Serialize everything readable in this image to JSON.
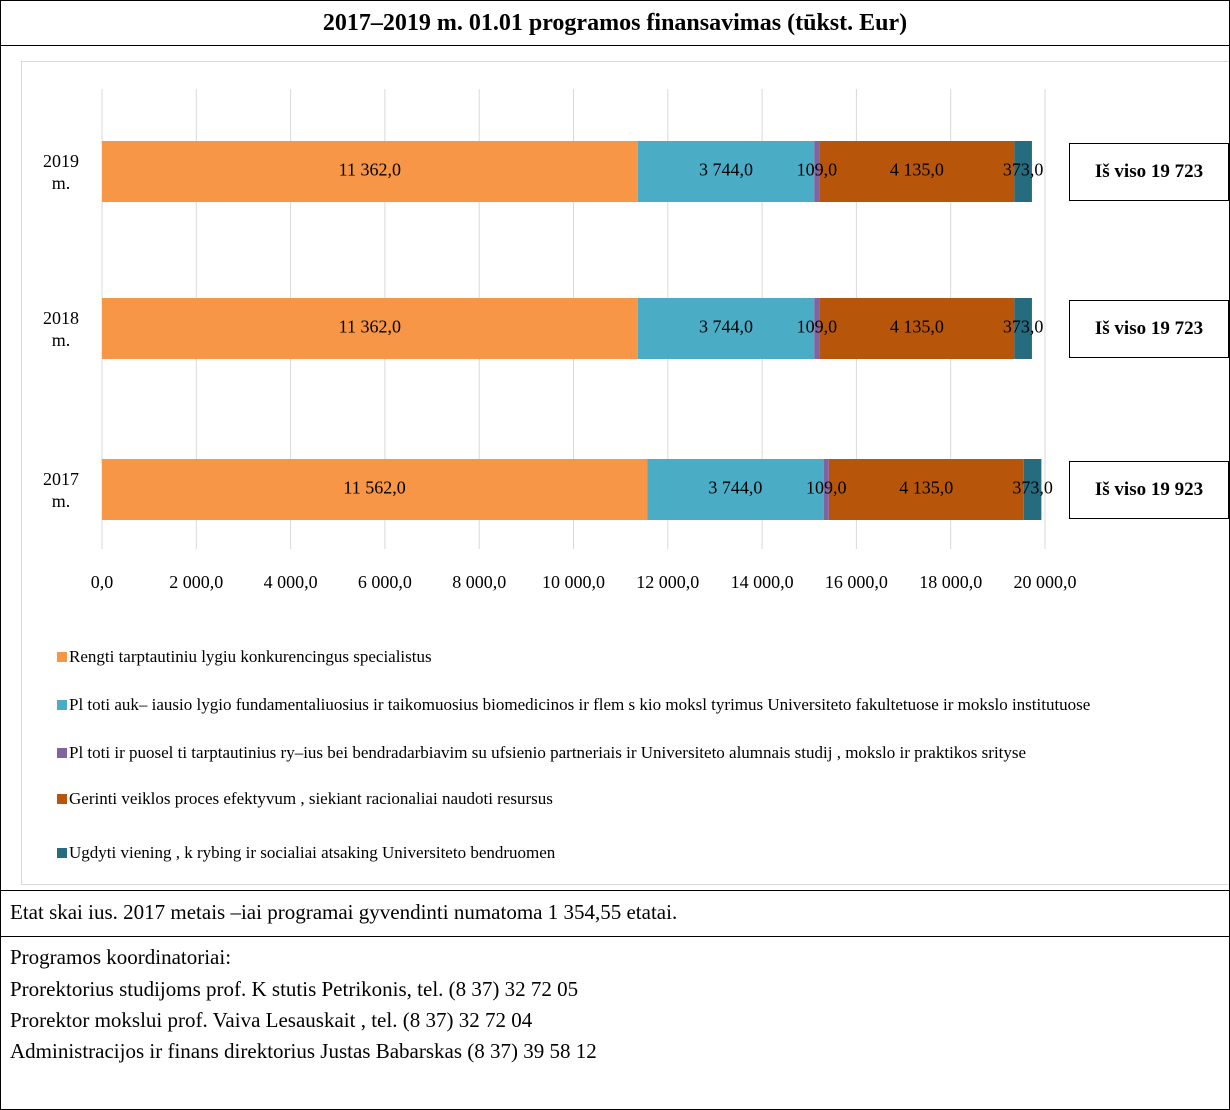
{
  "chart_data": {
    "type": "bar",
    "orientation": "horizontal",
    "stacked": true,
    "title": "2017–2019 m. 01.01 programos finansavimas (tūkst. Eur)",
    "categories": [
      "2019 m.",
      "2018 m.",
      "2017 m."
    ],
    "series": [
      {
        "name": "Rengti tarptautiniu lygiu konkurencingus specialistus",
        "color": "#f79646",
        "values": [
          11362,
          11362,
          11562
        ],
        "value_labels": [
          "11 362,0",
          "11 362,0",
          "11 562,0"
        ]
      },
      {
        "name": "Pl toti auk– iausio lygio fundamentaliuosius ir taikomuosius biomedicinos ir flem s  kio moksl  tyrimus Universiteto fakultetuose ir mokslo institutuose",
        "color": "#4bacc6",
        "values": [
          3744,
          3744,
          3744
        ],
        "value_labels": [
          "3 744,0",
          "3 744,0",
          "3 744,0"
        ]
      },
      {
        "name": "Pl toti ir puosel ti tarptautinius ry–ius bei bendradarbiavim  su ufsienio partneriais ir Universiteto alumnais studij , mokslo ir praktikos  srityse",
        "color": "#8064a2",
        "values": [
          109,
          109,
          109
        ],
        "value_labels": [
          "109,0",
          "109,0",
          "109,0"
        ]
      },
      {
        "name": "Gerinti veiklos proces  efektyvum , siekiant racionaliai naudoti resursus",
        "color": "#b7560a",
        "values": [
          4135,
          4135,
          4135
        ],
        "value_labels": [
          "4 135,0",
          "4 135,0",
          "4 135,0"
        ]
      },
      {
        "name": "Ugdyti viening , k rybing  ir socialiai atsaking  Universiteto bendruomen",
        "color": "#266b7e",
        "values": [
          373,
          373,
          373
        ],
        "value_labels": [
          "373,0",
          "373,0",
          "373,0"
        ]
      }
    ],
    "annotations": [
      "Iš viso 19 723",
      "Iš viso 19 723",
      "Iš viso 19 923"
    ],
    "xlim": [
      0,
      20000
    ],
    "xticks": [
      {
        "value": 0,
        "label": "0,0"
      },
      {
        "value": 2000,
        "label": "2 000,0"
      },
      {
        "value": 4000,
        "label": "4 000,0"
      },
      {
        "value": 6000,
        "label": "6 000,0"
      },
      {
        "value": 8000,
        "label": "8 000,0"
      },
      {
        "value": 10000,
        "label": "10 000,0"
      },
      {
        "value": 12000,
        "label": "12 000,0"
      },
      {
        "value": 14000,
        "label": "14 000,0"
      },
      {
        "value": 16000,
        "label": "16 000,0"
      },
      {
        "value": 18000,
        "label": "18 000,0"
      },
      {
        "value": 20000,
        "label": "20 000,0"
      }
    ],
    "grid": true,
    "legend": "bottom"
  },
  "staff_note": "Etat   skai ius. 2017 metais –iai programai  gyvendinti numatoma 1 354,55 etatai.",
  "coordinators": {
    "title": "Programos koordinatoriai:",
    "lines": [
      "Prorektorius studijoms prof. K  stutis Petrikonis, tel. (8 37)  32 72 05",
      "Prorektor  mokslui prof. Vaiva Lesauskait  , tel. (8 37)  32 72 04",
      "Administracijos ir finans   direktorius Justas Babarskas (8 37) 39 58 12"
    ]
  }
}
